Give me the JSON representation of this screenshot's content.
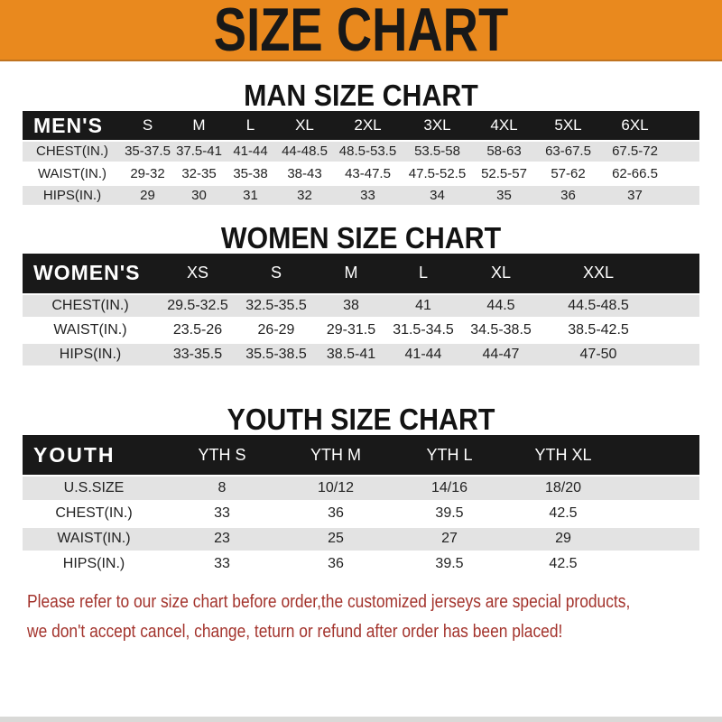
{
  "banner": {
    "title": "SIZE CHART"
  },
  "sections": [
    {
      "heading": "MAN SIZE CHART",
      "table": {
        "label": "MEN'S",
        "columns": [
          "S",
          "M",
          "L",
          "XL",
          "2XL",
          "3XL",
          "4XL",
          "5XL",
          "6XL"
        ],
        "rows": [
          {
            "label": "CHEST(IN.)",
            "values": [
              "35-37.5",
              "37.5-41",
              "41-44",
              "44-48.5",
              "48.5-53.5",
              "53.5-58",
              "58-63",
              "63-67.5",
              "67.5-72"
            ]
          },
          {
            "label": "WAIST(IN.)",
            "values": [
              "29-32",
              "32-35",
              "35-38",
              "38-43",
              "43-47.5",
              "47.5-52.5",
              "52.5-57",
              "57-62",
              "62-66.5"
            ]
          },
          {
            "label": "HIPS(IN.)",
            "values": [
              "29",
              "30",
              "31",
              "32",
              "33",
              "34",
              "35",
              "36",
              "37"
            ]
          }
        ]
      }
    },
    {
      "heading": "WOMEN SIZE CHART",
      "table": {
        "label": "WOMEN'S",
        "columns": [
          "XS",
          "S",
          "M",
          "L",
          "XL",
          "XXL"
        ],
        "rows": [
          {
            "label": "CHEST(IN.)",
            "values": [
              "29.5-32.5",
              "32.5-35.5",
              "38",
              "41",
              "44.5",
              "44.5-48.5"
            ]
          },
          {
            "label": "WAIST(IN.)",
            "values": [
              "23.5-26",
              "26-29",
              "29-31.5",
              "31.5-34.5",
              "34.5-38.5",
              "38.5-42.5"
            ]
          },
          {
            "label": "HIPS(IN.)",
            "values": [
              "33-35.5",
              "35.5-38.5",
              "38.5-41",
              "41-44",
              "44-47",
              "47-50"
            ]
          }
        ]
      }
    },
    {
      "heading": "YOUTH SIZE CHART",
      "table": {
        "label": "YOUTH",
        "columns": [
          "YTH S",
          "YTH M",
          "YTH L",
          "YTH XL"
        ],
        "rows": [
          {
            "label": "U.S.SIZE",
            "values": [
              "8",
              "10/12",
              "14/16",
              "18/20"
            ]
          },
          {
            "label": "CHEST(IN.)",
            "values": [
              "33",
              "36",
              "39.5",
              "42.5"
            ]
          },
          {
            "label": "WAIST(IN.)",
            "values": [
              "23",
              "25",
              "27",
              "29"
            ]
          },
          {
            "label": "HIPS(IN.)",
            "values": [
              "33",
              "36",
              "39.5",
              "42.5"
            ]
          }
        ]
      }
    }
  ],
  "footer": {
    "line1": "Please refer to our size chart before order,the customized jerseys are special products,",
    "line2": "we don't accept cancel, change, teturn or refund after order has been placed!"
  },
  "colors": {
    "banner_orange": "#E9891E",
    "header_black": "#191919",
    "row_gray": "#E3E3E3",
    "note_red": "#A3332C"
  }
}
